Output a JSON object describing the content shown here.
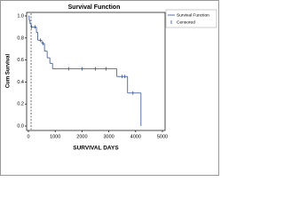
{
  "chart_data": {
    "type": "step",
    "title": "Survival Function",
    "x_label": "SURVIVAL DAYS",
    "y_label": "Cum Survival",
    "x": [
      0,
      30,
      60,
      100,
      300,
      350,
      500,
      600,
      700,
      800,
      900,
      3300,
      3700,
      4200
    ],
    "y": [
      1.0,
      0.96,
      0.93,
      0.9,
      0.85,
      0.78,
      0.75,
      0.68,
      0.62,
      0.57,
      0.52,
      0.45,
      0.3,
      0.0
    ],
    "censored_x": [
      120,
      250,
      450,
      550,
      1500,
      2000,
      2500,
      2900,
      3500,
      3600,
      3900
    ],
    "censored_y": [
      0.9,
      0.9,
      0.78,
      0.75,
      0.52,
      0.52,
      0.52,
      0.52,
      0.45,
      0.45,
      0.3
    ],
    "reference_x": 100,
    "color": "#2f4f9f",
    "legend": [
      "Survival Function",
      "Censored"
    ],
    "xlim": [
      0,
      5000
    ],
    "xticks": [
      0,
      1000,
      2000,
      3000,
      4000,
      5000
    ],
    "ylim": [
      0,
      1.0
    ],
    "yticks": [
      {
        "value": 0,
        "label": "0.0"
      },
      0.2,
      0.4,
      0.6,
      0.8,
      {
        "value": 1,
        "label": "1.0"
      }
    ]
  }
}
